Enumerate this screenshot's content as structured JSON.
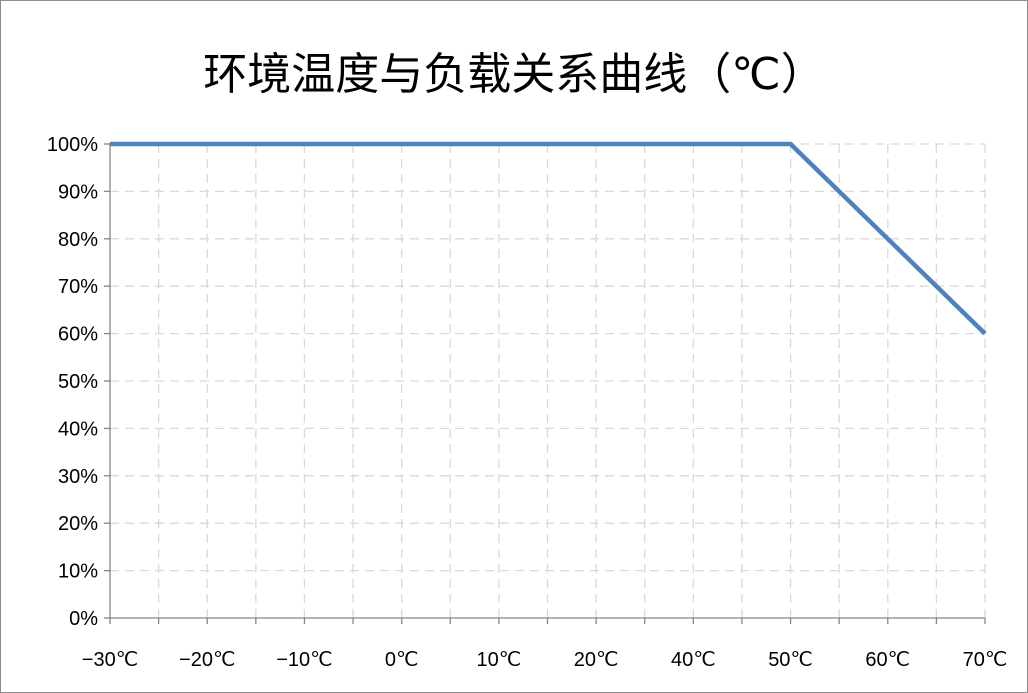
{
  "chart_data": {
    "type": "line",
    "title": "环境温度与负载关系曲线（℃）",
    "xlabel": "",
    "ylabel": "",
    "categories": [
      "−30℃",
      "−20℃",
      "−10℃",
      "0℃",
      "10℃",
      "20℃",
      "40℃",
      "50℃",
      "60℃",
      "70℃"
    ],
    "y_ticks": [
      "0%",
      "10%",
      "20%",
      "30%",
      "40%",
      "50%",
      "60%",
      "70%",
      "80%",
      "90%",
      "100%"
    ],
    "ylim": [
      0,
      100
    ],
    "grid": true,
    "legend": "none",
    "series": [
      {
        "color": "#4f81bd",
        "values": [
          100,
          100,
          100,
          100,
          100,
          100,
          100,
          100,
          80,
          60
        ]
      }
    ]
  },
  "colors": {
    "series_line": "#4f81bd",
    "gridline": "#d9d9d9",
    "axis": "#868686",
    "frame": "#8c8c8c"
  }
}
